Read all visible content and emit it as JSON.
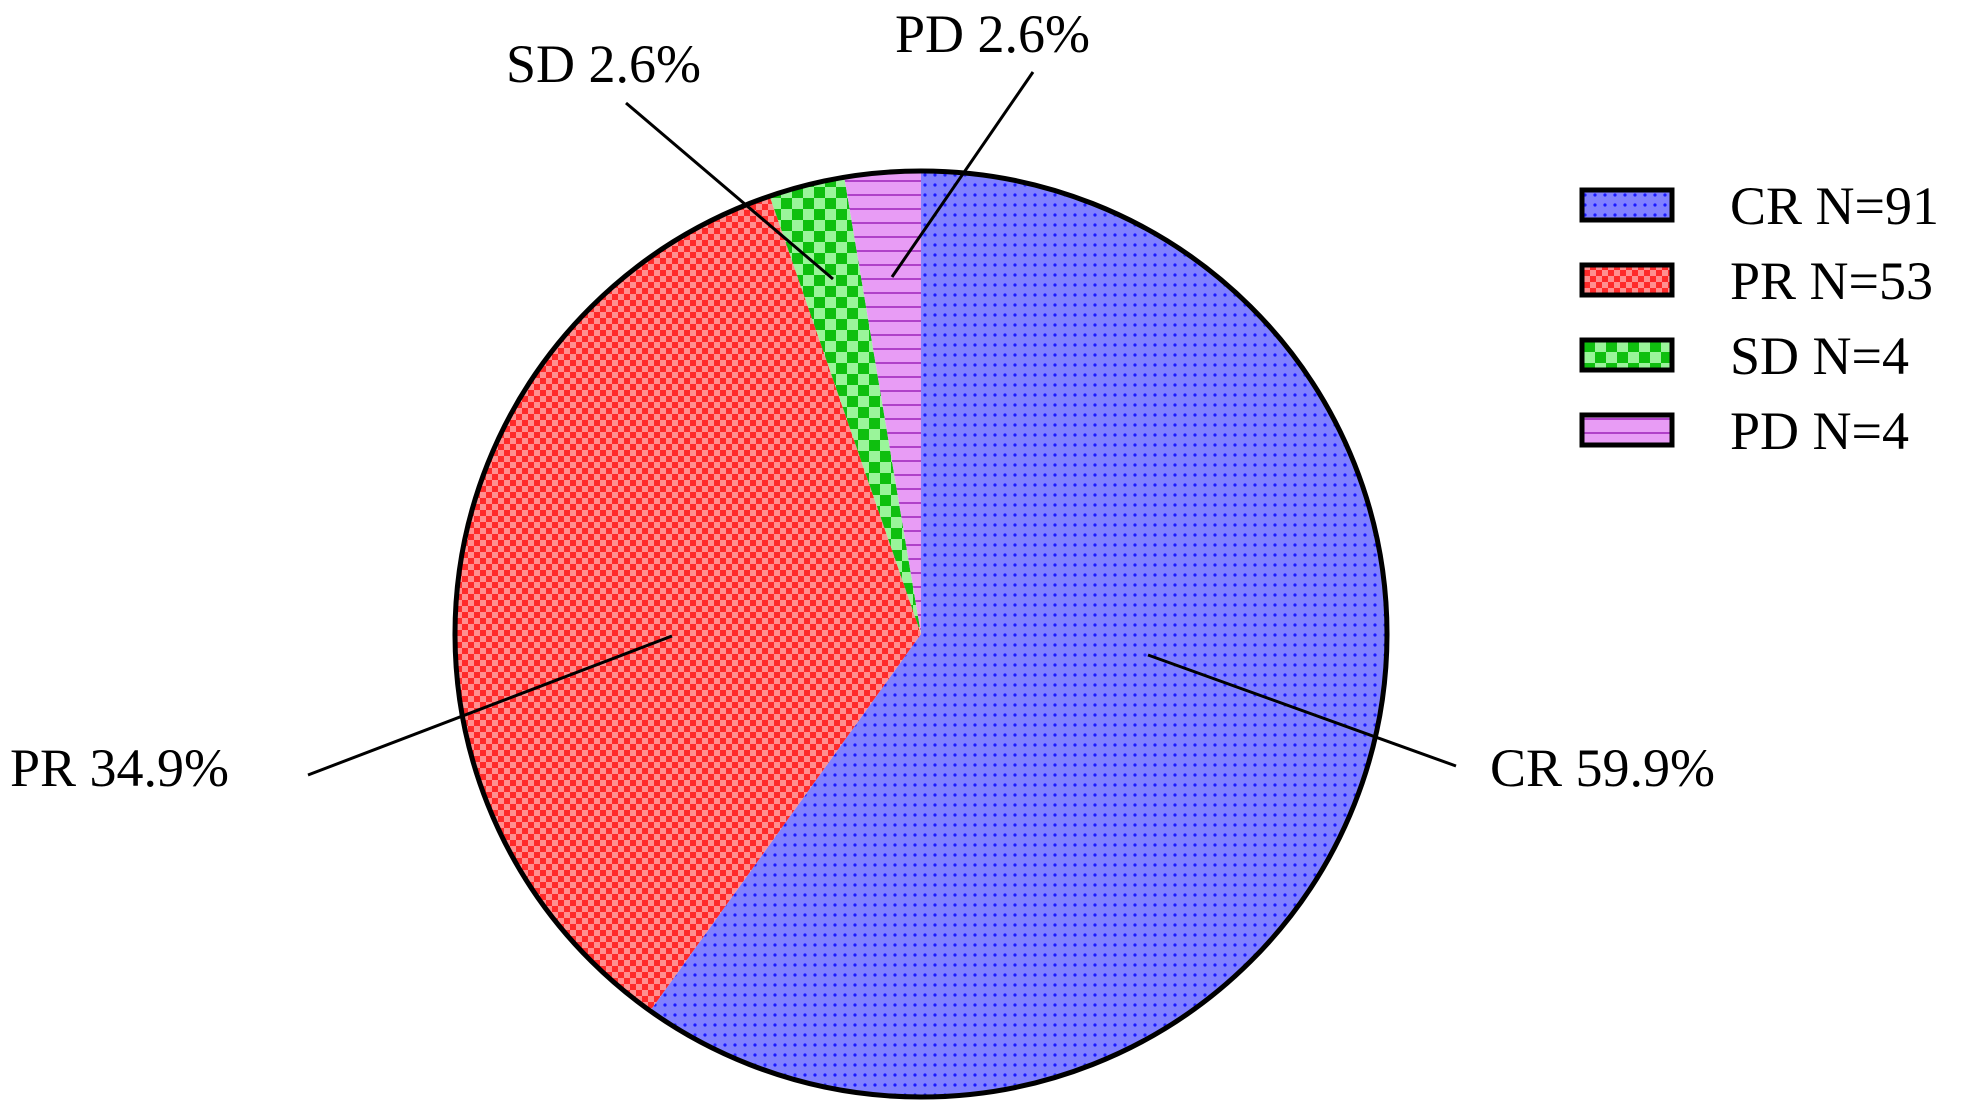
{
  "chart_data": {
    "type": "pie",
    "title": "",
    "start": "top, clockwise",
    "slices": [
      {
        "key": "cr",
        "name": "CR",
        "count": 91,
        "percent": 59.9,
        "label": "CR 59.9%",
        "legend": "CR N=91",
        "color": "#8080ff",
        "pattern": "dots"
      },
      {
        "key": "pr",
        "name": "PR",
        "count": 53,
        "percent": 34.9,
        "label": "PR 34.9%",
        "legend": "PR N=53",
        "color": "#ff3b3b",
        "pattern": "checker"
      },
      {
        "key": "sd",
        "name": "SD",
        "count": 4,
        "percent": 2.6,
        "label": "SD 2.6%",
        "legend": "SD N=4",
        "color": "#33dd33",
        "pattern": "large-checker"
      },
      {
        "key": "pd",
        "name": "PD",
        "count": 4,
        "percent": 2.6,
        "label": "PD 2.6%",
        "legend": "PD N=4",
        "color": "#e090f0",
        "pattern": "horizontal-stripes"
      }
    ],
    "legend_position": "right",
    "labels": "outside with leader lines"
  }
}
